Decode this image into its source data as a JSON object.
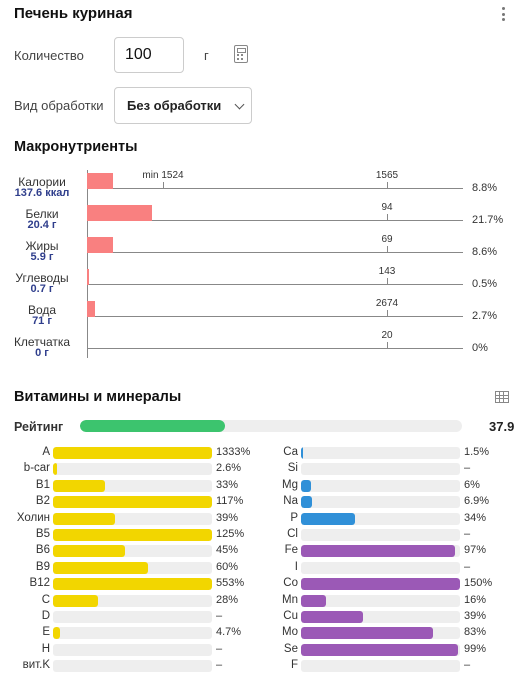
{
  "header": {
    "title": "Печень куриная"
  },
  "quantity": {
    "label": "Количество",
    "value": "100",
    "unit": "г"
  },
  "processing": {
    "label": "Вид обработки",
    "selected": "Без обработки"
  },
  "macros": {
    "title": "Макронутриенты",
    "bar_color": "#f98080",
    "items": [
      {
        "name": "Калории",
        "amount": "137.6 ккал",
        "norm": "1565",
        "min_label": "min 1524",
        "pct": "8.8%",
        "fraction": 0.088
      },
      {
        "name": "Белки",
        "amount": "20.4 г",
        "norm": "94",
        "pct": "21.7%",
        "fraction": 0.217
      },
      {
        "name": "Жиры",
        "amount": "5.9 г",
        "norm": "69",
        "pct": "8.6%",
        "fraction": 0.086
      },
      {
        "name": "Углеводы",
        "amount": "0.7 г",
        "norm": "143",
        "pct": "0.5%",
        "fraction": 0.005
      },
      {
        "name": "Вода",
        "amount": "71 г",
        "norm": "2674",
        "pct": "2.7%",
        "fraction": 0.027
      },
      {
        "name": "Клетчатка",
        "amount": "0 г",
        "norm": "20",
        "pct": "0%",
        "fraction": 0
      }
    ]
  },
  "vitamins": {
    "title": "Витамины и минералы",
    "rating": {
      "label": "Рейтинг",
      "value": "37.9",
      "fraction": 0.379,
      "color": "#3cc46e"
    },
    "vitamin_color": "#f2d600",
    "left": [
      {
        "name": "A",
        "pct": "1333%",
        "fraction": 1.0
      },
      {
        "name": "b-car",
        "pct": "2.6%",
        "fraction": 0.026
      },
      {
        "name": "B1",
        "pct": "33%",
        "fraction": 0.33
      },
      {
        "name": "B2",
        "pct": "117%",
        "fraction": 1.0
      },
      {
        "name": "Холин",
        "pct": "39%",
        "fraction": 0.39
      },
      {
        "name": "B5",
        "pct": "125%",
        "fraction": 1.0
      },
      {
        "name": "B6",
        "pct": "45%",
        "fraction": 0.45
      },
      {
        "name": "B9",
        "pct": "60%",
        "fraction": 0.6
      },
      {
        "name": "B12",
        "pct": "553%",
        "fraction": 1.0
      },
      {
        "name": "C",
        "pct": "28%",
        "fraction": 0.28
      },
      {
        "name": "D",
        "pct": "–",
        "fraction": 0
      },
      {
        "name": "E",
        "pct": "4.7%",
        "fraction": 0.047
      },
      {
        "name": "H",
        "pct": "–",
        "fraction": 0
      },
      {
        "name": "вит.K",
        "pct": "–",
        "fraction": 0
      }
    ],
    "right": [
      {
        "name": "Ca",
        "pct": "1.5%",
        "fraction": 0.015,
        "color": "#3090d8"
      },
      {
        "name": "Si",
        "pct": "–",
        "fraction": 0,
        "color": "#3090d8"
      },
      {
        "name": "Mg",
        "pct": "6%",
        "fraction": 0.06,
        "color": "#3090d8"
      },
      {
        "name": "Na",
        "pct": "6.9%",
        "fraction": 0.069,
        "color": "#3090d8"
      },
      {
        "name": "P",
        "pct": "34%",
        "fraction": 0.34,
        "color": "#3090d8"
      },
      {
        "name": "Cl",
        "pct": "–",
        "fraction": 0,
        "color": "#3090d8"
      },
      {
        "name": "Fe",
        "pct": "97%",
        "fraction": 0.97,
        "color": "#9b59b6"
      },
      {
        "name": "I",
        "pct": "–",
        "fraction": 0,
        "color": "#9b59b6"
      },
      {
        "name": "Co",
        "pct": "150%",
        "fraction": 1.0,
        "color": "#9b59b6"
      },
      {
        "name": "Mn",
        "pct": "16%",
        "fraction": 0.16,
        "color": "#9b59b6"
      },
      {
        "name": "Cu",
        "pct": "39%",
        "fraction": 0.39,
        "color": "#9b59b6"
      },
      {
        "name": "Mo",
        "pct": "83%",
        "fraction": 0.83,
        "color": "#9b59b6"
      },
      {
        "name": "Se",
        "pct": "99%",
        "fraction": 0.99,
        "color": "#9b59b6"
      },
      {
        "name": "F",
        "pct": "–",
        "fraction": 0,
        "color": "#9b59b6"
      }
    ]
  }
}
